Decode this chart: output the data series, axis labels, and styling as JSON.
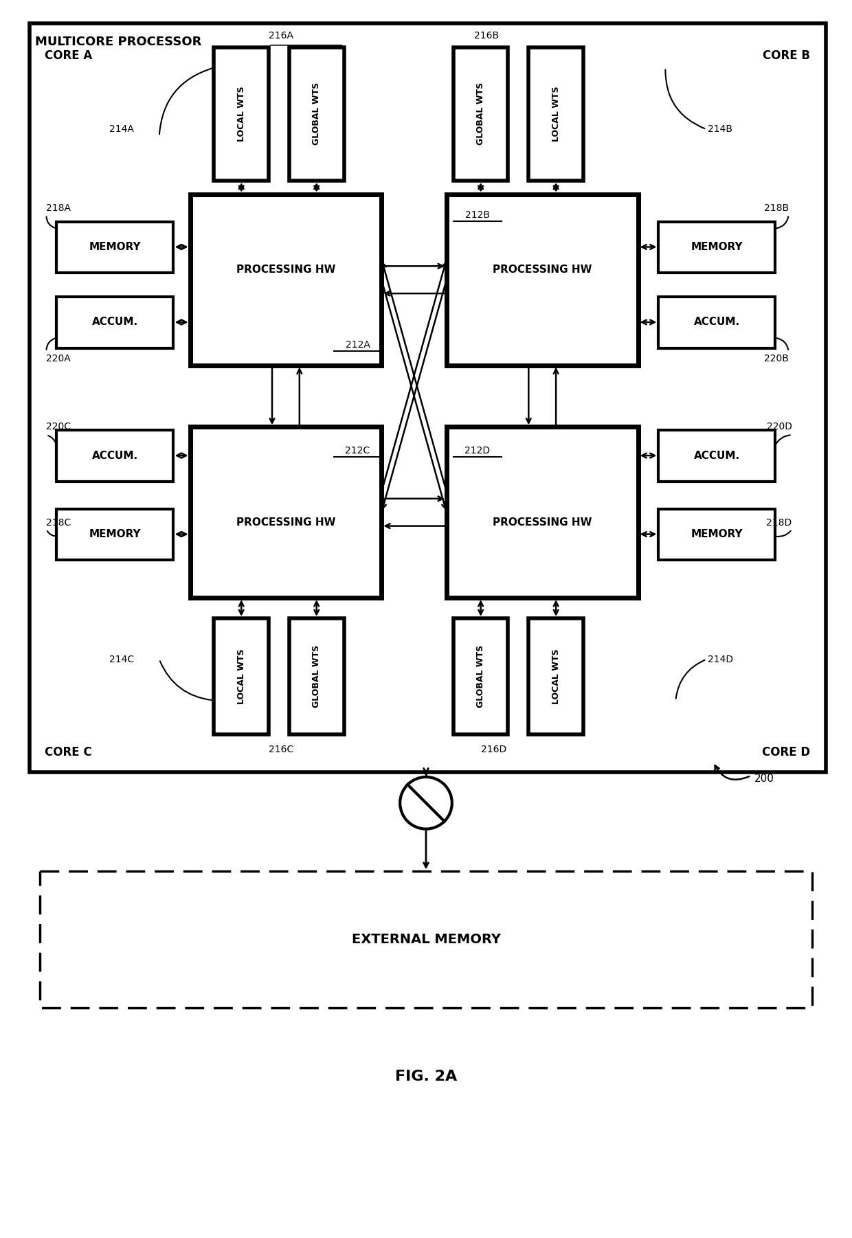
{
  "fig_width": 12.4,
  "fig_height": 18.02,
  "bg_color": "#ffffff",
  "title": "FIG. 2A",
  "outer_box_label": "MULTICORE PROCESSOR",
  "ext_memory_label": "EXTERNAL MEMORY"
}
